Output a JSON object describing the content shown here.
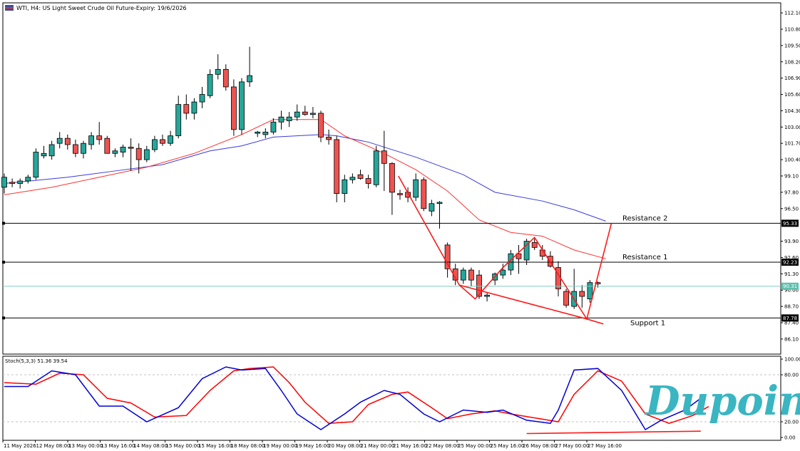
{
  "header": {
    "title": "WTI, H4:  US Light Sweet Crude Oil Future-Expiry: 19/6/2026"
  },
  "chart_data": {
    "type": "candlestick",
    "symbol": "WTI",
    "timeframe": "H4",
    "y_ticks": [
      "112.10",
      "110.80",
      "109.50",
      "108.20",
      "106.90",
      "105.60",
      "104.30",
      "103.00",
      "101.70",
      "100.40",
      "99.10",
      "97.80",
      "96.50",
      "93.90",
      "92.60",
      "91.30",
      "90.00",
      "88.70",
      "87.40",
      "86.10"
    ],
    "ylim": [
      84.9,
      112.9
    ],
    "x_labels": [
      "11 May 2026",
      "12 May 08:00",
      "13 May 00:00",
      "13 May 16:00",
      "14 May 08:00",
      "15 May 00:00",
      "15 May 16:00",
      "18 May 08:00",
      "19 May 00:00",
      "19 May 16:00",
      "20 May 08:00",
      "21 May 00:00",
      "21 May 16:00",
      "22 May 08:00",
      "25 May 00:00",
      "25 May 16:00",
      "26 May 08:00",
      "27 May 00:00",
      "27 May 16:00"
    ],
    "candles": [
      {
        "o": 98.2,
        "h": 99.3,
        "l": 97.7,
        "c": 99.0
      },
      {
        "o": 98.6,
        "h": 98.9,
        "l": 98.2,
        "c": 98.5
      },
      {
        "o": 98.5,
        "h": 98.9,
        "l": 98.1,
        "c": 98.7
      },
      {
        "o": 98.7,
        "h": 99.2,
        "l": 98.5,
        "c": 99.0
      },
      {
        "o": 99.0,
        "h": 101.3,
        "l": 98.8,
        "c": 101.0
      },
      {
        "o": 100.7,
        "h": 101.5,
        "l": 100.5,
        "c": 100.9
      },
      {
        "o": 100.7,
        "h": 101.9,
        "l": 100.4,
        "c": 101.6
      },
      {
        "o": 101.7,
        "h": 102.6,
        "l": 101.3,
        "c": 102.1
      },
      {
        "o": 102.1,
        "h": 102.4,
        "l": 101.2,
        "c": 101.6
      },
      {
        "o": 101.6,
        "h": 102.0,
        "l": 100.6,
        "c": 100.9
      },
      {
        "o": 100.9,
        "h": 101.9,
        "l": 100.5,
        "c": 101.7
      },
      {
        "o": 101.6,
        "h": 102.6,
        "l": 101.2,
        "c": 102.3
      },
      {
        "o": 102.3,
        "h": 103.4,
        "l": 101.6,
        "c": 102.0
      },
      {
        "o": 102.1,
        "h": 102.3,
        "l": 100.9,
        "c": 100.9
      },
      {
        "o": 100.9,
        "h": 101.3,
        "l": 100.6,
        "c": 101.1
      },
      {
        "o": 101.0,
        "h": 101.6,
        "l": 100.6,
        "c": 101.4
      },
      {
        "o": 101.4,
        "h": 102.1,
        "l": 99.5,
        "c": 101.3
      },
      {
        "o": 101.3,
        "h": 101.7,
        "l": 99.3,
        "c": 100.4
      },
      {
        "o": 100.4,
        "h": 101.5,
        "l": 100.2,
        "c": 101.2
      },
      {
        "o": 101.2,
        "h": 102.3,
        "l": 101.0,
        "c": 102.0
      },
      {
        "o": 102.0,
        "h": 102.4,
        "l": 101.5,
        "c": 101.7
      },
      {
        "o": 101.7,
        "h": 102.7,
        "l": 101.5,
        "c": 102.3
      },
      {
        "o": 102.3,
        "h": 105.5,
        "l": 102.1,
        "c": 104.8
      },
      {
        "o": 104.8,
        "h": 105.6,
        "l": 103.6,
        "c": 104.1
      },
      {
        "o": 104.1,
        "h": 105.3,
        "l": 103.6,
        "c": 105.0
      },
      {
        "o": 105.0,
        "h": 106.2,
        "l": 104.5,
        "c": 105.6
      },
      {
        "o": 105.5,
        "h": 107.6,
        "l": 105.3,
        "c": 107.2
      },
      {
        "o": 107.2,
        "h": 108.8,
        "l": 106.8,
        "c": 107.6
      },
      {
        "o": 107.6,
        "h": 108.0,
        "l": 105.9,
        "c": 106.2
      },
      {
        "o": 106.2,
        "h": 106.8,
        "l": 102.3,
        "c": 102.8
      },
      {
        "o": 102.8,
        "h": 106.9,
        "l": 102.4,
        "c": 106.6
      },
      {
        "o": 106.6,
        "h": 109.4,
        "l": 106.2,
        "c": 107.1
      },
      {
        "o": 102.5,
        "h": 102.7,
        "l": 102.2,
        "c": 102.6
      },
      {
        "o": 102.4,
        "h": 102.9,
        "l": 102.1,
        "c": 102.6
      },
      {
        "o": 102.6,
        "h": 103.7,
        "l": 102.4,
        "c": 103.4
      },
      {
        "o": 103.4,
        "h": 104.3,
        "l": 102.8,
        "c": 103.8
      },
      {
        "o": 103.5,
        "h": 104.2,
        "l": 103.0,
        "c": 103.8
      },
      {
        "o": 103.8,
        "h": 104.8,
        "l": 103.5,
        "c": 104.2
      },
      {
        "o": 104.2,
        "h": 104.7,
        "l": 103.9,
        "c": 104.0
      },
      {
        "o": 104.0,
        "h": 104.6,
        "l": 103.7,
        "c": 104.1
      },
      {
        "o": 104.1,
        "h": 104.3,
        "l": 101.8,
        "c": 102.2
      },
      {
        "o": 102.2,
        "h": 102.8,
        "l": 101.6,
        "c": 102.0
      },
      {
        "o": 102.0,
        "h": 102.3,
        "l": 97.0,
        "c": 97.7
      },
      {
        "o": 97.7,
        "h": 99.2,
        "l": 97.0,
        "c": 98.8
      },
      {
        "o": 98.8,
        "h": 99.3,
        "l": 98.5,
        "c": 99.0
      },
      {
        "o": 99.2,
        "h": 99.6,
        "l": 98.8,
        "c": 98.9
      },
      {
        "o": 98.9,
        "h": 99.2,
        "l": 98.1,
        "c": 98.5
      },
      {
        "o": 98.4,
        "h": 101.5,
        "l": 98.2,
        "c": 101.1
      },
      {
        "o": 101.1,
        "h": 102.7,
        "l": 97.9,
        "c": 100.1
      },
      {
        "o": 100.1,
        "h": 100.2,
        "l": 96.0,
        "c": 97.8
      },
      {
        "o": 97.7,
        "h": 98.0,
        "l": 97.2,
        "c": 97.6
      },
      {
        "o": 97.8,
        "h": 98.2,
        "l": 97.0,
        "c": 97.4
      },
      {
        "o": 97.4,
        "h": 99.3,
        "l": 97.1,
        "c": 98.8
      },
      {
        "o": 98.8,
        "h": 99.0,
        "l": 96.3,
        "c": 96.5
      },
      {
        "o": 96.3,
        "h": 97.2,
        "l": 95.9,
        "c": 96.9
      },
      {
        "o": 96.9,
        "h": 97.1,
        "l": 94.9,
        "c": 97.0
      },
      {
        "o": 93.6,
        "h": 93.8,
        "l": 91.0,
        "c": 91.7
      },
      {
        "o": 91.7,
        "h": 92.1,
        "l": 90.4,
        "c": 90.8
      },
      {
        "o": 90.8,
        "h": 91.8,
        "l": 90.5,
        "c": 91.6
      },
      {
        "o": 91.6,
        "h": 91.8,
        "l": 90.3,
        "c": 90.8
      },
      {
        "o": 91.2,
        "h": 91.6,
        "l": 89.3,
        "c": 89.5
      },
      {
        "o": 89.5,
        "h": 89.8,
        "l": 89.1,
        "c": 89.6
      },
      {
        "o": 90.8,
        "h": 91.4,
        "l": 90.4,
        "c": 91.3
      },
      {
        "o": 91.2,
        "h": 92.1,
        "l": 90.9,
        "c": 91.6
      },
      {
        "o": 91.6,
        "h": 93.2,
        "l": 91.2,
        "c": 92.9
      },
      {
        "o": 92.9,
        "h": 93.6,
        "l": 91.3,
        "c": 92.5
      },
      {
        "o": 92.4,
        "h": 94.1,
        "l": 92.0,
        "c": 93.9
      },
      {
        "o": 93.8,
        "h": 94.1,
        "l": 93.2,
        "c": 93.4
      },
      {
        "o": 93.2,
        "h": 93.6,
        "l": 92.4,
        "c": 92.7
      },
      {
        "o": 92.7,
        "h": 93.1,
        "l": 91.8,
        "c": 91.9
      },
      {
        "o": 91.8,
        "h": 92.3,
        "l": 89.5,
        "c": 90.1
      },
      {
        "o": 89.9,
        "h": 90.1,
        "l": 88.6,
        "c": 88.8
      },
      {
        "o": 88.7,
        "h": 91.7,
        "l": 88.5,
        "c": 89.9
      },
      {
        "o": 89.9,
        "h": 90.4,
        "l": 88.6,
        "c": 89.5
      },
      {
        "o": 89.3,
        "h": 90.8,
        "l": 89.0,
        "c": 90.6
      },
      {
        "o": 90.6,
        "h": 90.7,
        "l": 90.2,
        "c": 90.5
      }
    ],
    "ma_red": [
      [
        0,
        97.6
      ],
      [
        6,
        98.2
      ],
      [
        12,
        99.0
      ],
      [
        18,
        99.8
      ],
      [
        24,
        100.9
      ],
      [
        30,
        102.4
      ],
      [
        34,
        103.6
      ],
      [
        40,
        103.6
      ],
      [
        43,
        102.3
      ],
      [
        48,
        100.9
      ],
      [
        52,
        99.6
      ],
      [
        56,
        97.9
      ],
      [
        60,
        95.6
      ],
      [
        64,
        94.6
      ],
      [
        68,
        94.3
      ],
      [
        72,
        93.2
      ],
      [
        76,
        92.5
      ]
    ],
    "ma_blue": [
      [
        0,
        98.5
      ],
      [
        8,
        99.0
      ],
      [
        14,
        99.5
      ],
      [
        20,
        100.0
      ],
      [
        26,
        101.1
      ],
      [
        30,
        101.5
      ],
      [
        34,
        102.2
      ],
      [
        40,
        102.4
      ],
      [
        42,
        102.3
      ],
      [
        46,
        101.8
      ],
      [
        52,
        100.6
      ],
      [
        58,
        99.2
      ],
      [
        62,
        97.8
      ],
      [
        68,
        97.1
      ],
      [
        72,
        96.4
      ],
      [
        76,
        95.5
      ]
    ],
    "hlines": [
      {
        "name": "Resistance 2",
        "value": 95.33,
        "tag": "95.33"
      },
      {
        "name": "Resistance 1",
        "value": 92.23,
        "tag": "92.23"
      },
      {
        "name": "Support 1",
        "value": 87.78,
        "tag": "87.78"
      }
    ],
    "current_price": {
      "value": 90.31,
      "tag": "90.31"
    },
    "pattern_lines": [
      [
        [
          49.8,
          99.1
        ],
        [
          57.5,
          90.4
        ],
        [
          59.5,
          89.3
        ],
        [
          63,
          91.8
        ],
        [
          67,
          94.2
        ],
        [
          73.6,
          87.7
        ],
        [
          76.7,
          95.3
        ]
      ],
      [
        [
          57.5,
          90.4
        ],
        [
          73.6,
          87.7
        ]
      ],
      [
        [
          73.6,
          87.7
        ],
        [
          75.7,
          87.3
        ]
      ]
    ],
    "stochastic": {
      "label": "Stoch(5,3,3) 51.36 39.54",
      "y_ticks": [
        "100.00",
        "80.00",
        "20.00",
        "0.00"
      ],
      "levels": [
        80,
        20
      ],
      "main": [
        [
          0,
          65
        ],
        [
          3,
          65
        ],
        [
          6,
          85
        ],
        [
          9,
          80
        ],
        [
          12,
          40
        ],
        [
          15,
          40
        ],
        [
          18,
          20
        ],
        [
          22,
          38
        ],
        [
          25,
          75
        ],
        [
          28,
          90
        ],
        [
          30,
          86
        ],
        [
          33,
          88
        ],
        [
          35,
          60
        ],
        [
          37,
          30
        ],
        [
          40,
          10
        ],
        [
          43,
          30
        ],
        [
          45,
          45
        ],
        [
          48,
          60
        ],
        [
          50,
          55
        ],
        [
          53,
          30
        ],
        [
          55,
          20
        ],
        [
          58,
          35
        ],
        [
          61,
          32
        ],
        [
          63,
          35
        ],
        [
          66,
          22
        ],
        [
          69,
          18
        ],
        [
          70,
          35
        ],
        [
          72,
          86
        ],
        [
          75,
          88
        ],
        [
          78,
          60
        ],
        [
          81,
          10
        ],
        [
          83,
          22
        ],
        [
          86,
          35
        ],
        [
          88,
          50
        ]
      ],
      "signal": [
        [
          0,
          70
        ],
        [
          4,
          68
        ],
        [
          7,
          82
        ],
        [
          10,
          80
        ],
        [
          13,
          50
        ],
        [
          16,
          44
        ],
        [
          19,
          26
        ],
        [
          23,
          28
        ],
        [
          26,
          60
        ],
        [
          29,
          85
        ],
        [
          31,
          88
        ],
        [
          34,
          90
        ],
        [
          36,
          70
        ],
        [
          38,
          45
        ],
        [
          41,
          18
        ],
        [
          44,
          20
        ],
        [
          46,
          42
        ],
        [
          49,
          55
        ],
        [
          51,
          58
        ],
        [
          54,
          38
        ],
        [
          56,
          24
        ],
        [
          59,
          30
        ],
        [
          62,
          34
        ],
        [
          64,
          30
        ],
        [
          67,
          25
        ],
        [
          70,
          20
        ],
        [
          72,
          55
        ],
        [
          75,
          85
        ],
        [
          78,
          72
        ],
        [
          81,
          30
        ],
        [
          84,
          18
        ],
        [
          87,
          28
        ],
        [
          89,
          39.5
        ]
      ],
      "div_line": [
        [
          66,
          5
        ],
        [
          88,
          8
        ]
      ]
    }
  },
  "brand": "Dupoin"
}
